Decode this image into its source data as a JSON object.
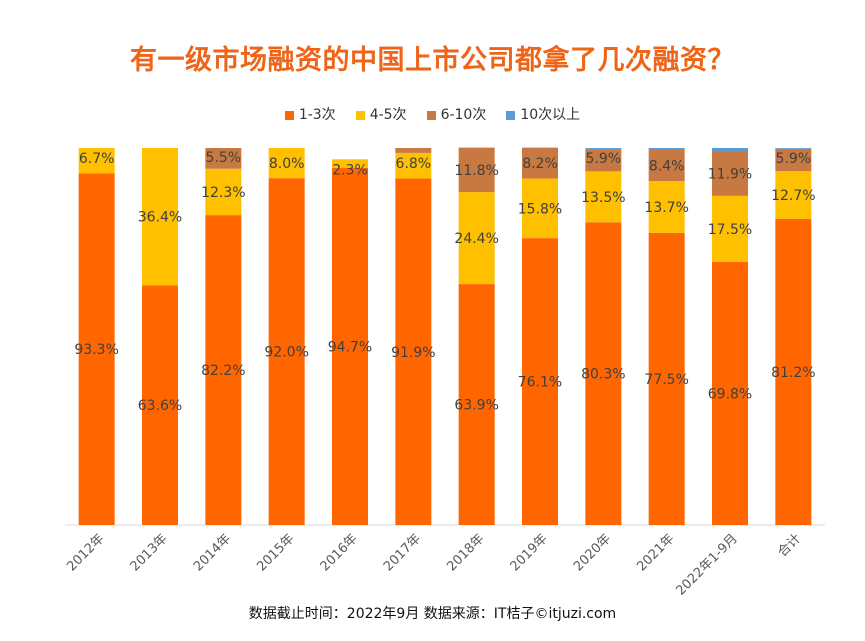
{
  "chart_data": {
    "type": "bar",
    "stacked": true,
    "title": "有一级市场融资的中国上市公司都拿了几次融资？",
    "categories": [
      "2012年",
      "2013年",
      "2014年",
      "2015年",
      "2016年",
      "2017年",
      "2018年",
      "2019年",
      "2020年",
      "2021年",
      "2022年1-9月",
      "合计"
    ],
    "series": [
      {
        "name": "1-3次",
        "color": "#FF6600",
        "values": [
          93.3,
          63.6,
          82.2,
          92.0,
          94.7,
          91.9,
          63.9,
          76.1,
          80.3,
          77.5,
          69.8,
          81.2
        ],
        "labels": [
          "93.3%",
          "63.6%",
          "82.2%",
          "92.0%",
          "94.7%",
          "91.9%",
          "63.9%",
          "76.1%",
          "80.3%",
          "77.5%",
          "69.8%",
          "81.2%"
        ]
      },
      {
        "name": "4-5次",
        "color": "#FFC000",
        "values": [
          6.7,
          36.4,
          12.3,
          8.0,
          2.3,
          6.8,
          24.4,
          15.8,
          13.5,
          13.7,
          17.5,
          12.7
        ],
        "labels": [
          "6.7%",
          "36.4%",
          "12.3%",
          "8.0%",
          "2.3%",
          "6.8%",
          "24.4%",
          "15.8%",
          "13.5%",
          "13.7%",
          "17.5%",
          "12.7%"
        ]
      },
      {
        "name": "6-10次",
        "color": "#C87941",
        "values": [
          0,
          0,
          5.5,
          0,
          0,
          1.3,
          11.8,
          8.2,
          5.9,
          8.4,
          11.9,
          5.9
        ],
        "labels": [
          "",
          "",
          "5.5%",
          "",
          "",
          "",
          "11.8%",
          "8.2%",
          "5.9%",
          "8.4%",
          "11.9%",
          "5.9%"
        ]
      },
      {
        "name": "10次以上",
        "color": "#5B9BD5",
        "values": [
          0,
          0,
          0,
          0,
          0,
          0,
          0,
          0,
          0.3,
          0.4,
          0.8,
          0.2
        ],
        "labels": [
          "",
          "",
          "",
          "",
          "",
          "",
          "",
          "",
          "",
          "",
          "",
          ""
        ]
      }
    ],
    "ylim": [
      0,
      100
    ],
    "legend_position": "top",
    "grid": false
  },
  "footer": "数据截止时间：2022年9月 数据来源：IT桔子©itjuzi.com"
}
